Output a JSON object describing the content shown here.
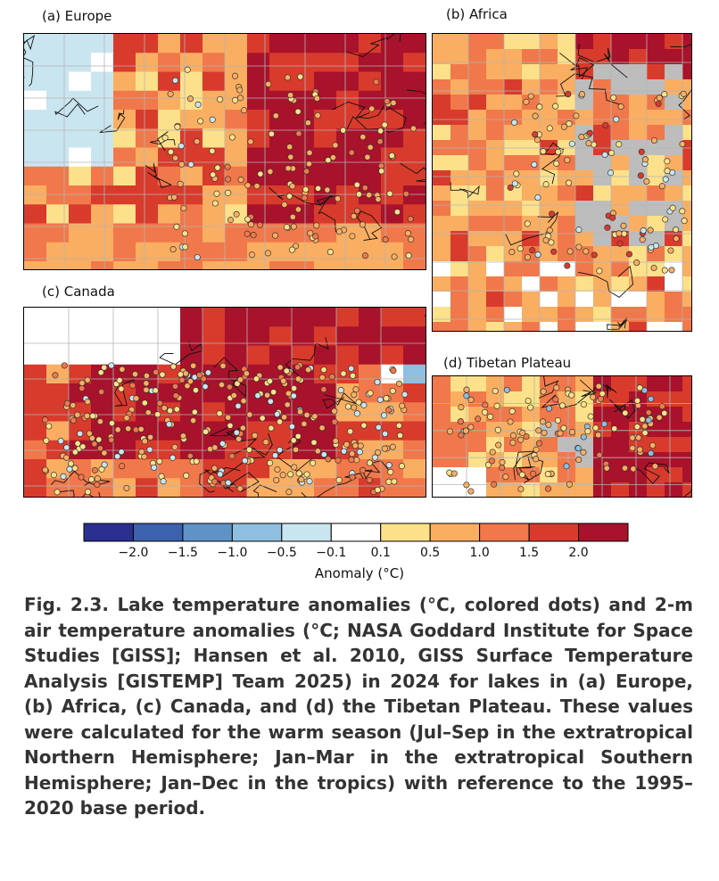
{
  "panels": {
    "europe": {
      "label": "(a) Europe"
    },
    "africa": {
      "label": "(b) Africa"
    },
    "canada": {
      "label": "(c) Canada"
    },
    "tibet": {
      "label": "(d) Tibetan Plateau"
    }
  },
  "legend": {
    "title": "Anomaly (°C)",
    "ticks": [
      "−2.0",
      "−1.5",
      "−1.0",
      "−0.5",
      "−0.1",
      "0.1",
      "0.5",
      "1.0",
      "1.5",
      "2.0"
    ],
    "colors": [
      "#2b2f8f",
      "#3d62ad",
      "#5f93c8",
      "#8fbfe0",
      "#c9e6f0",
      "#ffffff",
      "#fde08a",
      "#f9ae62",
      "#f0784a",
      "#d83a2c",
      "#a8122a"
    ]
  },
  "caption": "Fig. 2.3. Lake temperature anomalies (°C, colored dots) and 2-m air temperature anomalies (°C; NASA Goddard Institute for Space Studies [GISS]; Hansen et al. 2010, GISS Surface Temperature Analysis [GISTEMP] Team 2025) in 2024 for lakes in (a) Europe, (b) Africa, (c) Canada, and (d) the Tibetan Plateau. These values were calculated for the warm season (Jul–Sep in the extratropical Northern Hemisphere; Jan–Mar in the extratropical Southern Hemisphere; Jan–Dec in the tropics) with reference to the 1995–2020 base period."
}
